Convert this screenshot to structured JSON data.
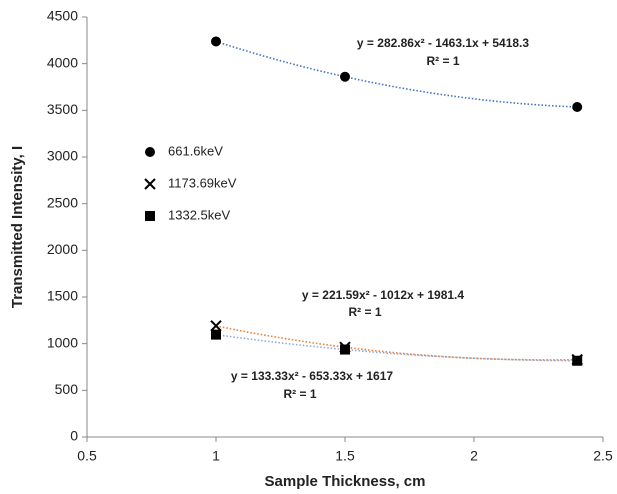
{
  "chart_data": {
    "type": "scatter",
    "xlabel": "Sample Thickness, cm",
    "ylabel": "Transmitted Intensity, I",
    "xlim": [
      0.5,
      2.5
    ],
    "xticks": [
      0.5,
      1,
      1.5,
      2,
      2.5
    ],
    "ylim": [
      0,
      4500
    ],
    "yticks": [
      0,
      500,
      1000,
      1500,
      2000,
      2500,
      3000,
      3500,
      4000,
      4500
    ],
    "grid": false,
    "legend": "left",
    "series": [
      {
        "name": "661.6keV",
        "marker": "circle",
        "color": "#000000",
        "trendline_color": "#4472c4",
        "x": [
          1,
          1.5,
          2.4
        ],
        "values": [
          4238,
          3860,
          3536
        ]
      },
      {
        "name": "1173.69keV",
        "marker": "cross",
        "color": "#000000",
        "trendline_color": "#ed7d31",
        "x": [
          1,
          1.5,
          2.4
        ],
        "values": [
          1191,
          962,
          829
        ]
      },
      {
        "name": "1332.5keV",
        "marker": "square",
        "color": "#000000",
        "trendline_color": "#8ea9db",
        "x": [
          1,
          1.5,
          2.4
        ],
        "values": [
          1097,
          937,
          817
        ]
      }
    ],
    "annotations": [
      "y = 282.86x² - 1463.1x + 5418.3",
      "R² = 1",
      "y = 221.59x² - 1012x + 1981.4",
      "R² = 1",
      "y = 133.33x² - 653.33x + 1617",
      "R² = 1"
    ]
  }
}
